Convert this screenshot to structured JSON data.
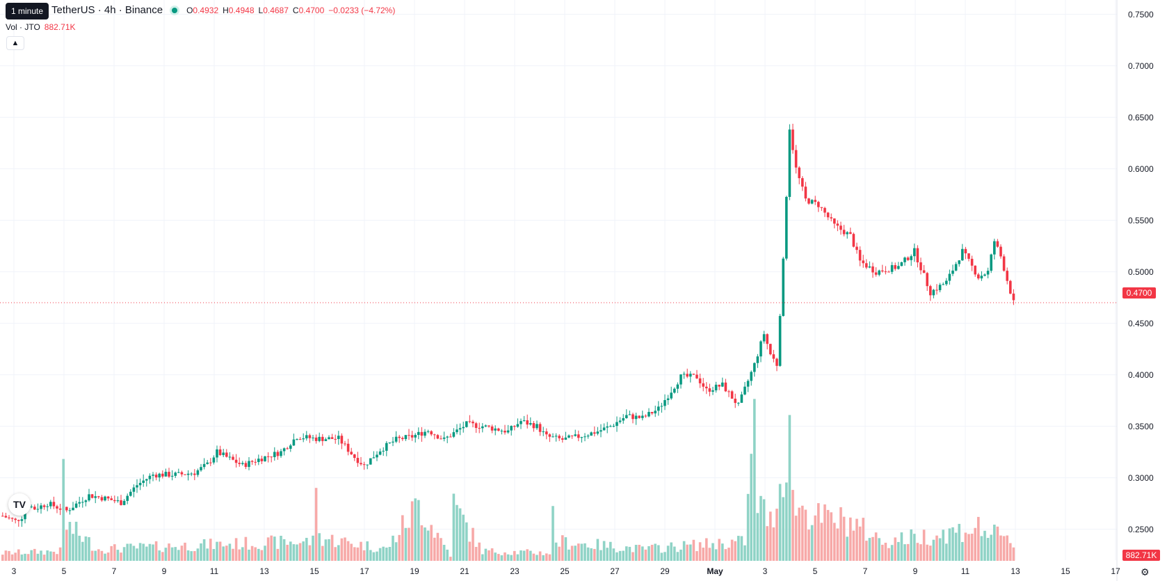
{
  "header": {
    "symbol": "TetherUS · 4h · Binance",
    "tooltip": "1 minute",
    "ohlc": {
      "o_label": "O",
      "o": "0.4932",
      "h_label": "H",
      "h": "0.4948",
      "l_label": "L",
      "l": "0.4687",
      "c_label": "C",
      "c": "0.4700",
      "change": "−0.0233 (−4.72%)"
    },
    "volume_label": "Vol · JTO",
    "volume_value": "882.71K",
    "collapse_icon": "chevron-up-icon"
  },
  "price_axis": {
    "labels": [
      "0.7500",
      "0.7000",
      "0.6500",
      "0.6000",
      "0.5500",
      "0.5000",
      "0.4500",
      "0.4000",
      "0.3500",
      "0.3000",
      "0.2500"
    ],
    "last_price": "0.4700",
    "last_volume": "882.71K"
  },
  "time_axis": {
    "labels": [
      "3",
      "5",
      "7",
      "9",
      "11",
      "13",
      "15",
      "17",
      "19",
      "21",
      "23",
      "25",
      "27",
      "29",
      "May",
      "3",
      "5",
      "7",
      "9",
      "11",
      "13",
      "15",
      "17"
    ]
  },
  "branding": {
    "logo_text": "TV",
    "settings_icon": "gear-icon"
  },
  "colors": {
    "up": "#089981",
    "down": "#f23645",
    "vol_up": "#8fd3c6",
    "vol_down": "#f7a9a8",
    "grid": "#f0f3fa"
  },
  "chart_data": {
    "type": "candlestick",
    "ylim": [
      0.22,
      0.75
    ],
    "last_price": 0.47,
    "x_categories": [
      "3",
      "5",
      "7",
      "9",
      "11",
      "13",
      "15",
      "17",
      "19",
      "21",
      "23",
      "25",
      "27",
      "29",
      "May",
      "3",
      "5",
      "7",
      "9",
      "11",
      "13",
      "15",
      "17"
    ],
    "keypoints": [
      [
        0,
        0.263
      ],
      [
        4,
        0.258
      ],
      [
        6,
        0.262
      ],
      [
        7,
        0.275
      ],
      [
        10,
        0.27
      ],
      [
        14,
        0.275
      ],
      [
        20,
        0.268
      ],
      [
        27,
        0.283
      ],
      [
        32,
        0.28
      ],
      [
        37,
        0.276
      ],
      [
        42,
        0.293
      ],
      [
        47,
        0.303
      ],
      [
        55,
        0.303
      ],
      [
        60,
        0.305
      ],
      [
        64,
        0.313
      ],
      [
        67,
        0.325
      ],
      [
        70,
        0.32
      ],
      [
        75,
        0.312
      ],
      [
        80,
        0.318
      ],
      [
        87,
        0.325
      ],
      [
        92,
        0.34
      ],
      [
        98,
        0.338
      ],
      [
        105,
        0.338
      ],
      [
        110,
        0.32
      ],
      [
        113,
        0.312
      ],
      [
        118,
        0.327
      ],
      [
        123,
        0.337
      ],
      [
        128,
        0.34
      ],
      [
        133,
        0.346
      ],
      [
        138,
        0.337
      ],
      [
        145,
        0.352
      ],
      [
        150,
        0.35
      ],
      [
        158,
        0.345
      ],
      [
        162,
        0.355
      ],
      [
        167,
        0.35
      ],
      [
        170,
        0.34
      ],
      [
        175,
        0.337
      ],
      [
        180,
        0.34
      ],
      [
        186,
        0.345
      ],
      [
        190,
        0.35
      ],
      [
        195,
        0.36
      ],
      [
        200,
        0.358
      ],
      [
        205,
        0.367
      ],
      [
        208,
        0.38
      ],
      [
        212,
        0.398
      ],
      [
        217,
        0.398
      ],
      [
        220,
        0.385
      ],
      [
        225,
        0.39
      ],
      [
        230,
        0.37
      ],
      [
        235,
        0.41
      ],
      [
        238,
        0.44
      ],
      [
        240,
        0.42
      ],
      [
        242,
        0.41
      ],
      [
        244,
        0.51
      ],
      [
        246,
        0.64
      ],
      [
        248,
        0.6
      ],
      [
        251,
        0.57
      ],
      [
        255,
        0.565
      ],
      [
        260,
        0.545
      ],
      [
        265,
        0.535
      ],
      [
        268,
        0.51
      ],
      [
        273,
        0.5
      ],
      [
        280,
        0.505
      ],
      [
        285,
        0.52
      ],
      [
        290,
        0.48
      ],
      [
        295,
        0.49
      ],
      [
        300,
        0.52
      ],
      [
        305,
        0.495
      ],
      [
        308,
        0.5
      ],
      [
        310,
        0.53
      ],
      [
        312,
        0.515
      ],
      [
        314,
        0.492
      ],
      [
        316,
        0.47
      ]
    ],
    "volume_keypoints": [
      [
        0,
        0.004
      ],
      [
        18,
        0.005
      ],
      [
        19,
        0.047
      ],
      [
        20,
        0.018
      ],
      [
        30,
        0.006
      ],
      [
        60,
        0.008
      ],
      [
        97,
        0.01
      ],
      [
        98,
        0.048
      ],
      [
        99,
        0.012
      ],
      [
        120,
        0.006
      ],
      [
        130,
        0.029
      ],
      [
        140,
        0.003
      ],
      [
        141,
        0.028
      ],
      [
        150,
        0.005
      ],
      [
        171,
        0.004
      ],
      [
        172,
        0.023
      ],
      [
        173,
        0.01
      ],
      [
        200,
        0.006
      ],
      [
        232,
        0.01
      ],
      [
        235,
        0.068
      ],
      [
        236,
        0.03
      ],
      [
        240,
        0.02
      ],
      [
        244,
        0.045
      ],
      [
        245,
        0.062
      ],
      [
        246,
        0.074
      ],
      [
        247,
        0.03
      ],
      [
        255,
        0.022
      ],
      [
        265,
        0.02
      ],
      [
        275,
        0.01
      ],
      [
        290,
        0.013
      ],
      [
        305,
        0.017
      ],
      [
        316,
        0.009
      ]
    ]
  }
}
